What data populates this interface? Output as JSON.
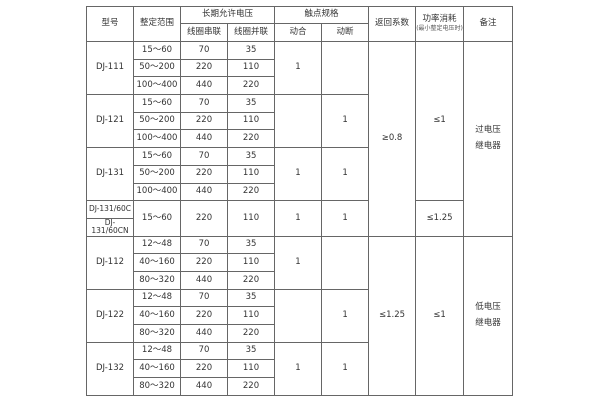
{
  "header": {
    "model": "型号",
    "range": "整定范围",
    "voltage": "长期允许电压",
    "series": "线圈串联",
    "parallel": "线圈并联",
    "contact": "触点规格",
    "make": "动合",
    "break": "动断",
    "return": "返回系数",
    "power": "功率消耗",
    "power_sub": "(最小整定电压时)",
    "remark": "备注"
  },
  "rows": [
    {
      "model": "DJ-111",
      "range": "15～60",
      "series": "70",
      "parallel": "35"
    },
    {
      "range": "50～200",
      "series": "220",
      "parallel": "110"
    },
    {
      "range": "100～400",
      "series": "440",
      "parallel": "220"
    },
    {
      "model": "DJ-121",
      "range": "15～60",
      "series": "70",
      "parallel": "35"
    },
    {
      "range": "50～200",
      "series": "220",
      "parallel": "110"
    },
    {
      "range": "100～400",
      "series": "440",
      "parallel": "220"
    },
    {
      "model": "DJ-131",
      "range": "15～60",
      "series": "70",
      "parallel": "35"
    },
    {
      "range": "50～200",
      "series": "220",
      "parallel": "110"
    },
    {
      "range": "100～400",
      "series": "440",
      "parallel": "220"
    },
    {
      "model": "DJ-131/60C",
      "range": "15～60",
      "series": "220",
      "parallel": "110"
    },
    {
      "model": "DJ-131/60CN"
    },
    {
      "model": "DJ-112",
      "range": "12～48",
      "series": "70",
      "parallel": "35"
    },
    {
      "range": "40～160",
      "series": "220",
      "parallel": "110"
    },
    {
      "range": "80～320",
      "series": "440",
      "parallel": "220"
    },
    {
      "model": "DJ-122",
      "range": "12～48",
      "series": "70",
      "parallel": "35"
    },
    {
      "range": "40～160",
      "series": "220",
      "parallel": "110"
    },
    {
      "range": "80～320",
      "series": "440",
      "parallel": "220"
    },
    {
      "model": "DJ-132",
      "range": "12～48",
      "series": "70",
      "parallel": "35"
    },
    {
      "range": "40～160",
      "series": "220",
      "parallel": "110"
    },
    {
      "range": "80～320",
      "series": "440",
      "parallel": "220"
    }
  ],
  "contacts": [
    {
      "make": "1",
      "break": ""
    },
    {
      "make": "",
      "break": "1"
    },
    {
      "make": "1",
      "break": "1"
    },
    {
      "make": "1",
      "break": "1"
    },
    {
      "make": "1",
      "break": ""
    },
    {
      "make": "",
      "break": "1"
    },
    {
      "make": "1",
      "break": "1"
    }
  ],
  "groups": {
    "over": {
      "return": "≥0.8",
      "power_a": "≤1",
      "power_b": "≤1.25",
      "remark": [
        "过电压",
        "继电器"
      ]
    },
    "under": {
      "return": "≤1.25",
      "power": "≤1",
      "remark": [
        "低电压",
        "继电器"
      ]
    }
  }
}
